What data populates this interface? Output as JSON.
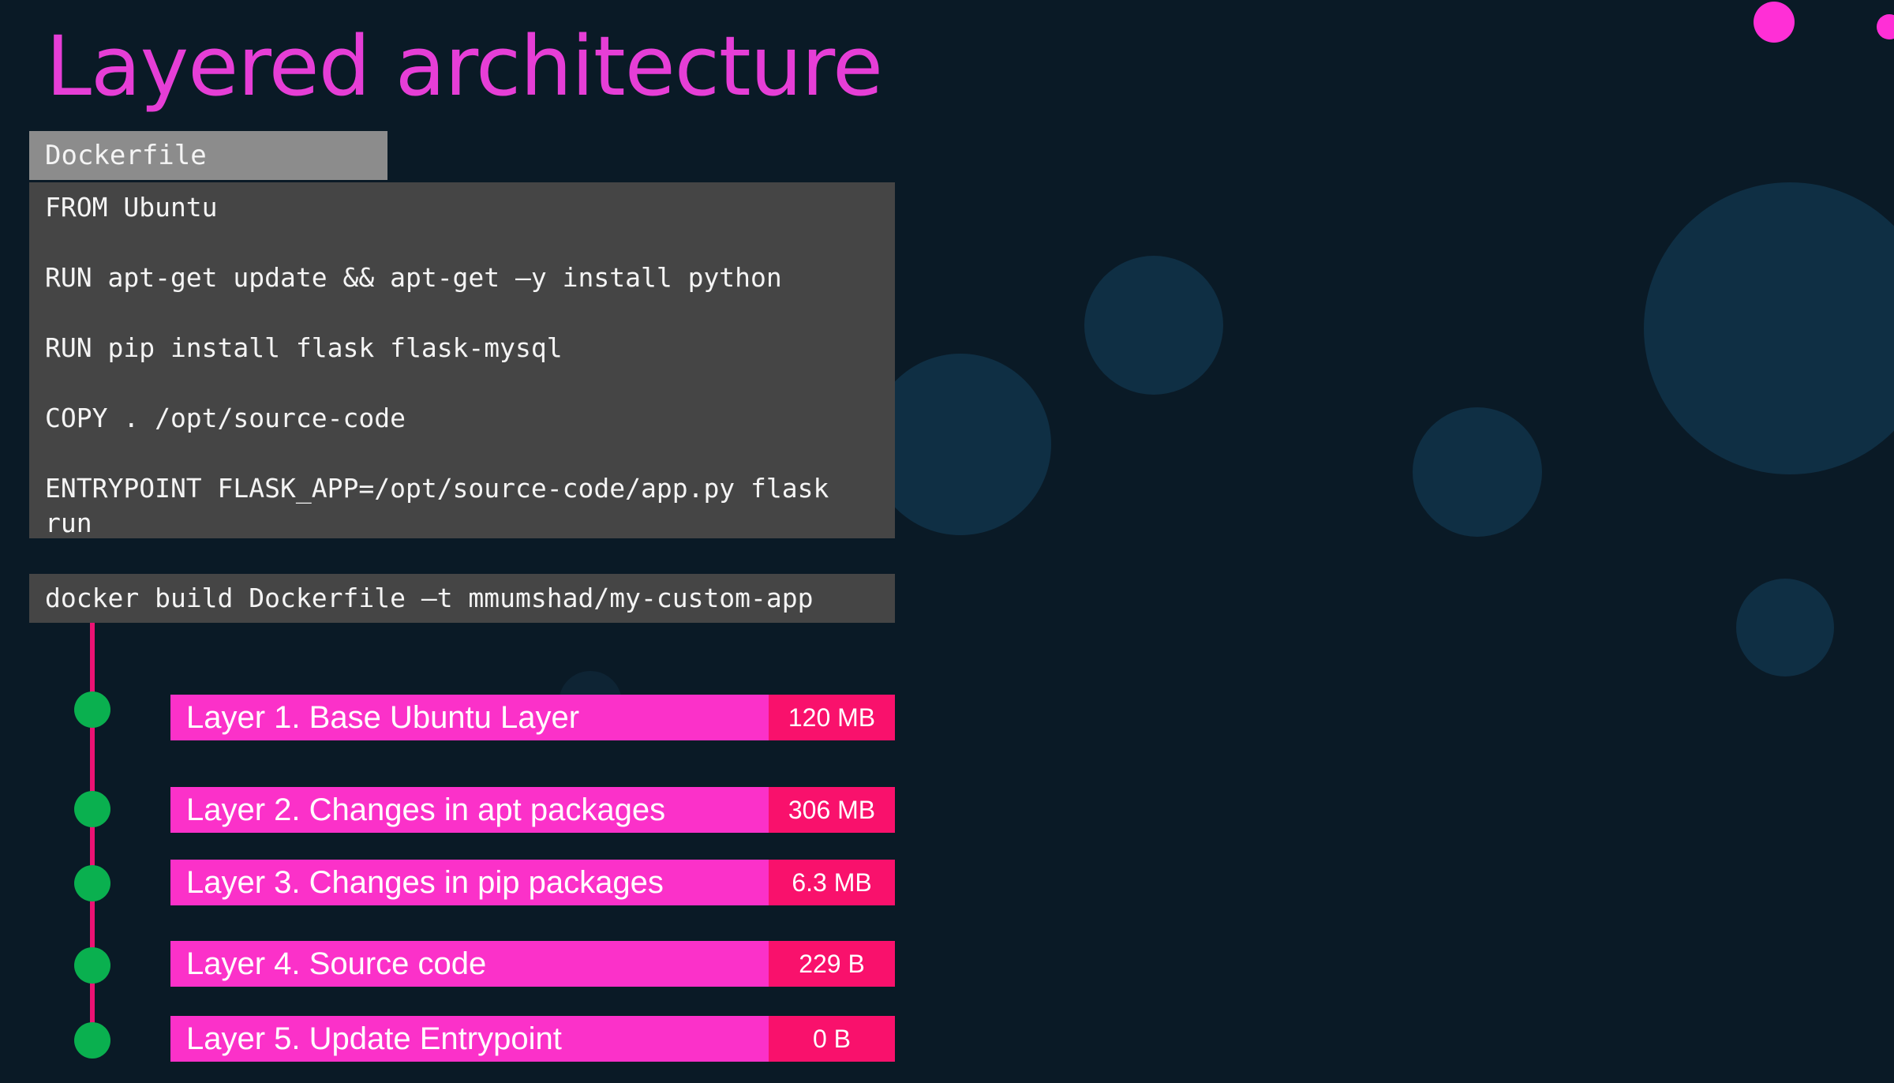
{
  "slide": {
    "title": "Layered architecture"
  },
  "dockerfile": {
    "tab_label": "Dockerfile",
    "lines": [
      "FROM Ubuntu",
      "RUN apt-get update && apt-get –y install python",
      "RUN pip install flask flask-mysql",
      "COPY . /opt/source-code",
      "ENTRYPOINT FLASK_APP=/opt/source-code/app.py flask run"
    ]
  },
  "build_command": "docker build Dockerfile –t mmumshad/my-custom-app",
  "layers": [
    {
      "label": "Layer 1. Base Ubuntu Layer",
      "size": "120 MB"
    },
    {
      "label": "Layer 2. Changes in apt packages",
      "size": "306 MB"
    },
    {
      "label": "Layer 3. Changes in pip packages",
      "size": "6.3 MB"
    },
    {
      "label": "Layer 4. Source code",
      "size": "229 B"
    },
    {
      "label": "Layer 5. Update Entrypoint",
      "size": "0 B"
    }
  ],
  "colors": {
    "background": "#0a1a26",
    "title": "#e63ed6",
    "code_background": "#454545",
    "code_tab": "#8c8c8c",
    "layer_bar": "#fb31c9",
    "layer_size": "#f9116c",
    "timeline": "#ec1273",
    "timeline_node": "#0ab04f",
    "bubble": "#0f2f44"
  }
}
